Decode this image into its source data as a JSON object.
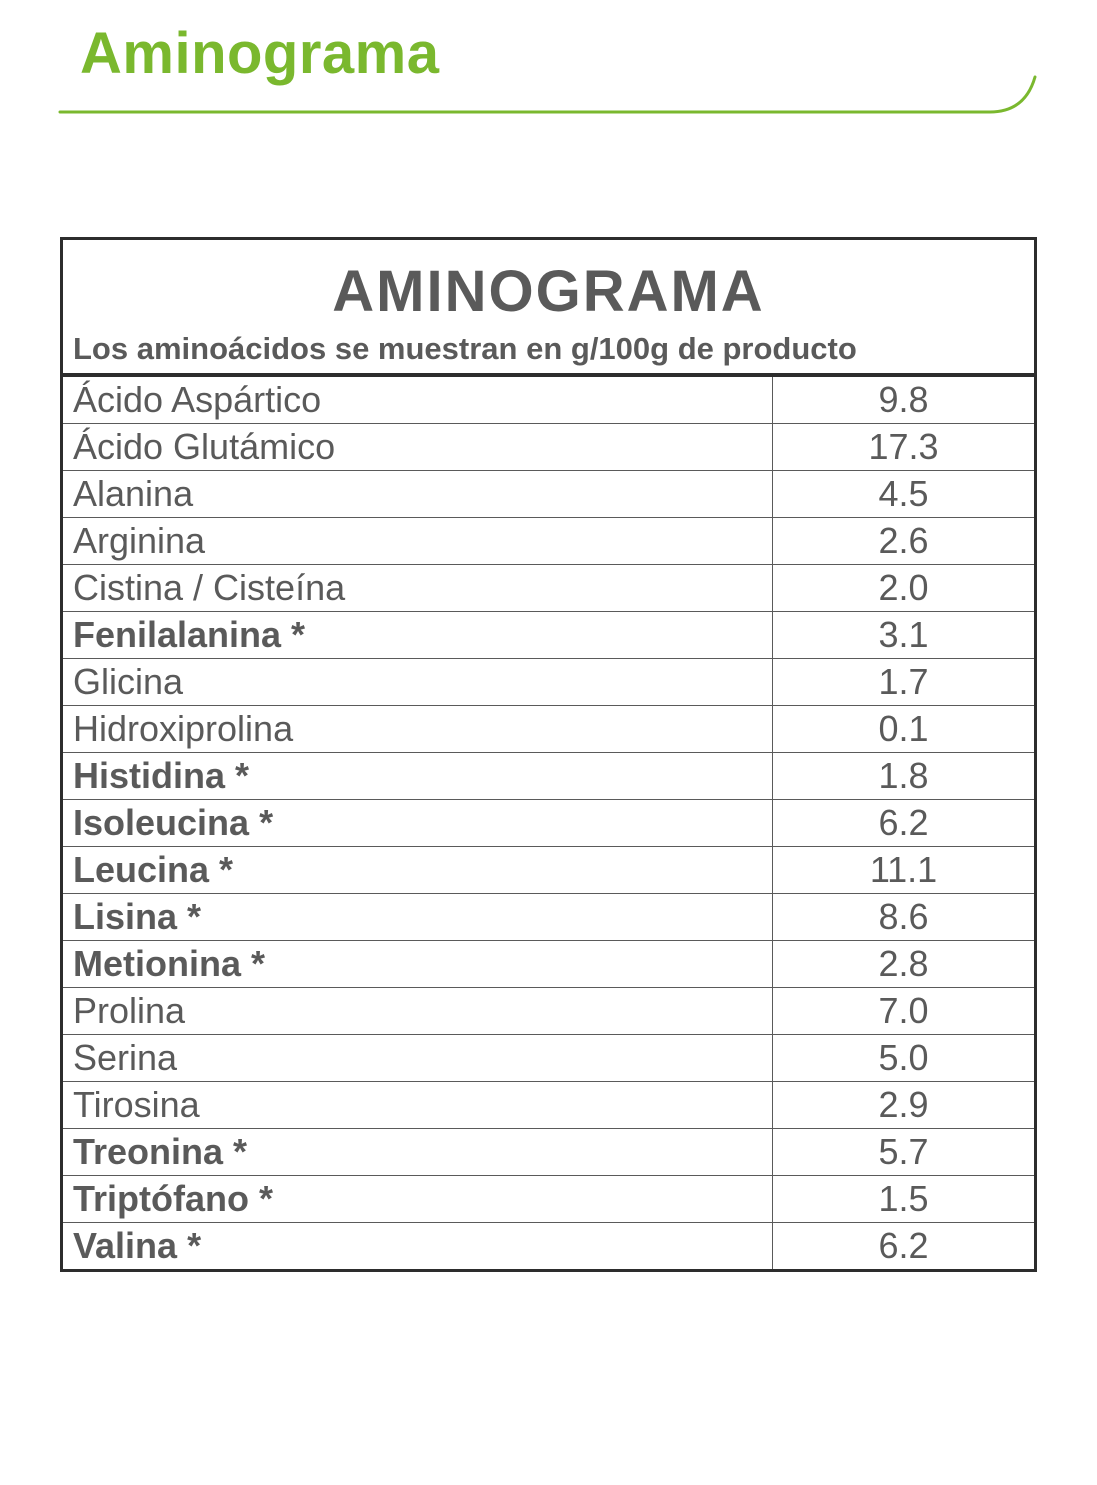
{
  "header": {
    "title": "Aminograma",
    "title_color": "#7ab82e",
    "title_fontsize": 58,
    "title_weight": 700,
    "underline_color": "#7ab82e",
    "underline_stroke": 3
  },
  "table": {
    "type": "table",
    "title": "AMINOGRAMA",
    "title_color": "#5a5a5a",
    "title_fontsize": 58,
    "title_weight": 700,
    "subtitle": "Los aminoácidos se muestran en g/100g de producto",
    "subtitle_fontsize": 31,
    "subtitle_weight": 700,
    "border_color": "#2d2d2d",
    "outer_border_width": 3,
    "header_rule_width": 4,
    "row_border_width": 1.5,
    "row_border_color": "#5a5a5a",
    "text_color": "#5a5a5a",
    "background_color": "#ffffff",
    "name_fontsize": 36,
    "value_fontsize": 36,
    "value_col_width_pct": 27,
    "columns": [
      "name",
      "value"
    ],
    "rows": [
      {
        "name": "Ácido Aspártico",
        "value": "9.8",
        "bold": false
      },
      {
        "name": "Ácido Glutámico",
        "value": "17.3",
        "bold": false
      },
      {
        "name": "Alanina",
        "value": "4.5",
        "bold": false
      },
      {
        "name": "Arginina",
        "value": "2.6",
        "bold": false
      },
      {
        "name": "Cistina / Cisteína",
        "value": "2.0",
        "bold": false
      },
      {
        "name": "Fenilalanina *",
        "value": "3.1",
        "bold": true
      },
      {
        "name": "Glicina",
        "value": "1.7",
        "bold": false
      },
      {
        "name": "Hidroxiprolina",
        "value": "0.1",
        "bold": false
      },
      {
        "name": "Histidina *",
        "value": "1.8",
        "bold": true
      },
      {
        "name": "Isoleucina *",
        "value": "6.2",
        "bold": true
      },
      {
        "name": "Leucina *",
        "value": "11.1",
        "bold": true
      },
      {
        "name": "Lisina *",
        "value": "8.6",
        "bold": true
      },
      {
        "name": "Metionina *",
        "value": "2.8",
        "bold": true
      },
      {
        "name": "Prolina",
        "value": "7.0",
        "bold": false
      },
      {
        "name": "Serina",
        "value": "5.0",
        "bold": false
      },
      {
        "name": "Tirosina",
        "value": "2.9",
        "bold": false
      },
      {
        "name": "Treonina *",
        "value": "5.7",
        "bold": true
      },
      {
        "name": "Triptófano *",
        "value": "1.5",
        "bold": true
      },
      {
        "name": "Valina *",
        "value": "6.2",
        "bold": true
      }
    ]
  }
}
